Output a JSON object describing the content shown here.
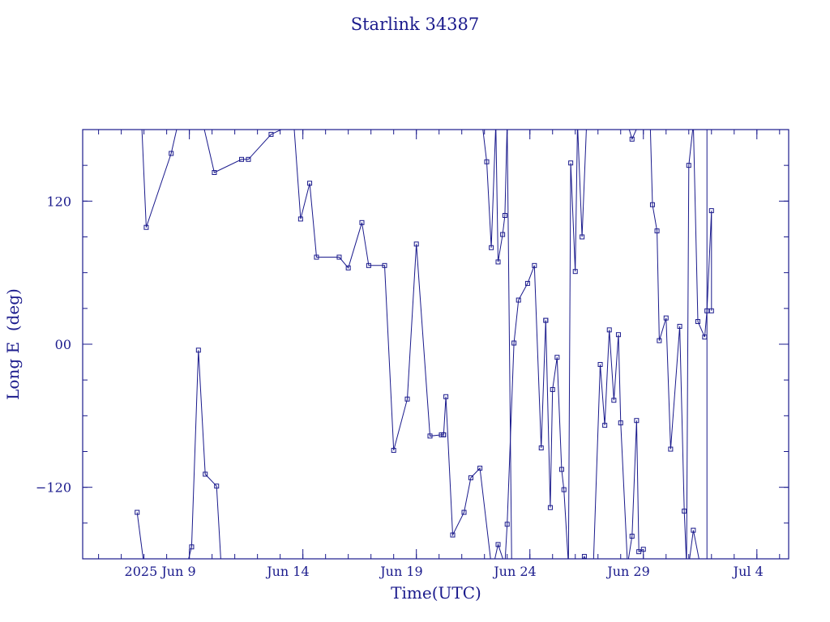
{
  "chart_data": {
    "type": "line",
    "title": "Starlink 34387",
    "xlabel": "Time(UTC)",
    "ylabel": "Long E  (deg)",
    "x_ticks": [
      {
        "value": 0,
        "label": "2025 Jun  9"
      },
      {
        "value": 5,
        "label": "Jun 14"
      },
      {
        "value": 10,
        "label": "Jun 19"
      },
      {
        "value": 15,
        "label": "Jun 24"
      },
      {
        "value": 20,
        "label": "Jun 29"
      },
      {
        "value": 25,
        "label": "Jul  4"
      }
    ],
    "y_ticks": [
      {
        "value": 120,
        "label": "120"
      },
      {
        "value": 0,
        "label": "00"
      },
      {
        "value": -120,
        "label": "−120"
      }
    ],
    "xlim": [
      -4.7,
      26.4
    ],
    "ylim": [
      -180,
      180
    ],
    "x_minor_step": 1,
    "y_minor_step": 30,
    "grid": false,
    "line_color": "#1a1a8c",
    "axis_color": "#1a1a8c",
    "marker": "square",
    "series": [
      {
        "x": [
          -2.1,
          -1.9,
          -0.8,
          -0.5,
          0.6,
          1.1,
          2.3,
          2.6,
          3.6,
          4.6,
          4.9,
          5.3,
          5.6,
          6.6,
          7.0,
          7.6,
          7.9,
          8.6,
          9.0,
          9.6,
          10.0,
          10.6,
          11.1,
          11.2
        ],
        "y": [
          185,
          98,
          160,
          185,
          185,
          144,
          155,
          155,
          176,
          185,
          105,
          135,
          73,
          73,
          64,
          102,
          66,
          66,
          -89,
          -46,
          84,
          -77,
          -76,
          -76
        ]
      },
      {
        "x": [
          -2.3,
          -2.0
        ],
        "y": [
          -141,
          -185
        ]
      },
      {
        "x": [
          -0.1,
          0.1,
          0.4,
          0.7,
          1.2,
          1.4,
          1.6
        ],
        "y": [
          -185,
          -170,
          -5,
          -109,
          -119,
          -185,
          -185
        ]
      },
      {
        "x": [
          11.2,
          11.3,
          11.6,
          12.1,
          12.4,
          12.8,
          13.3
        ],
        "y": [
          -76,
          -44,
          -160,
          -141,
          -112,
          -104,
          -185
        ]
      },
      {
        "x": [
          12.9,
          13.1,
          13.3,
          13.5,
          13.6,
          13.8,
          13.9,
          14.0,
          14.2,
          14.3
        ],
        "y": [
          185,
          153,
          81,
          185,
          69,
          92,
          108,
          185,
          -185,
          -185
        ]
      },
      {
        "x": [
          13.4,
          13.6,
          13.9,
          14.0,
          14.3,
          14.5,
          14.9,
          15.2,
          15.5,
          15.7
        ],
        "y": [
          -185,
          -168,
          -185,
          -151,
          1,
          37,
          51,
          66,
          -87,
          20
        ]
      },
      {
        "x": [
          15.7,
          15.9,
          16.0,
          16.2,
          16.4,
          16.5,
          16.7,
          16.8,
          17.0,
          17.1,
          17.3,
          17.5,
          17.7
        ],
        "y": [
          20,
          -137,
          -38,
          -11,
          -105,
          -122,
          -185,
          152,
          61,
          185,
          90,
          185,
          185
        ]
      },
      {
        "x": [
          17.2,
          17.4,
          17.6,
          17.8,
          18.1,
          18.3,
          18.5,
          18.7,
          18.9,
          19.0,
          19.3,
          19.5,
          19.7,
          19.8,
          20.0
        ],
        "y": [
          -185,
          -178,
          -185,
          -185,
          -17,
          -68,
          12,
          -47,
          8,
          -66,
          -185,
          -161,
          -64,
          -174,
          -172
        ]
      },
      {
        "x": [
          19.3,
          19.5,
          19.8,
          20.3,
          20.4,
          20.6,
          20.7,
          21.0,
          21.2,
          21.6,
          21.8,
          21.9,
          22.0,
          22.2,
          22.4,
          22.7,
          22.8,
          23.0,
          23.0
        ],
        "y": [
          185,
          172,
          185,
          185,
          117,
          95,
          3,
          22,
          -88,
          15,
          -140,
          -185,
          150,
          185,
          19,
          6,
          28,
          112,
          28
        ]
      },
      {
        "x": [
          22.0,
          22.2,
          22.5,
          22.8
        ],
        "y": [
          -185,
          -156,
          -185,
          -185
        ]
      },
      {
        "x": [
          22.8,
          22.8
        ],
        "y": [
          185,
          -185
        ]
      }
    ]
  }
}
